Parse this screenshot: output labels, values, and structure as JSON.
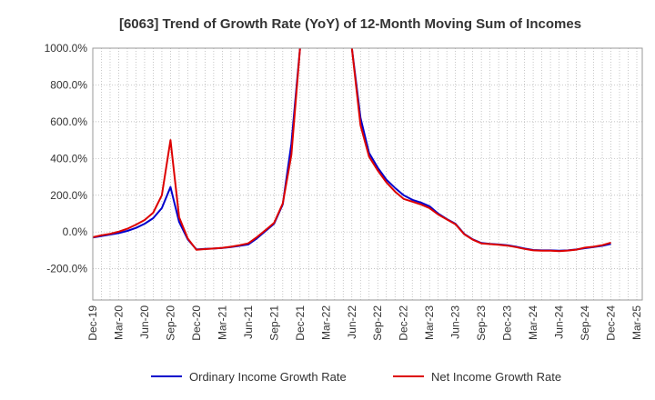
{
  "chart_data": {
    "type": "line",
    "title": "[6063]  Trend of Growth Rate (YoY) of 12-Month Moving Sum of Incomes",
    "xlabel": "",
    "ylabel": "",
    "ylim": [
      -370,
      1000
    ],
    "y_ticks": [
      1000,
      800,
      600,
      400,
      200,
      0,
      -200
    ],
    "y_tick_labels": [
      "1000.0%",
      "800.0%",
      "600.0%",
      "400.0%",
      "200.0%",
      "0.0%",
      "-200.0%"
    ],
    "x_tick_labels": [
      "Dec-19",
      "Mar-20",
      "Jun-20",
      "Sep-20",
      "Dec-20",
      "Mar-21",
      "Jun-21",
      "Sep-21",
      "Dec-21",
      "Mar-22",
      "Jun-22",
      "Sep-22",
      "Dec-22",
      "Mar-23",
      "Jun-23",
      "Sep-23",
      "Dec-23",
      "Mar-24",
      "Jun-24",
      "Sep-24",
      "Dec-24",
      "Mar-25"
    ],
    "grid": true,
    "legend_position": "bottom",
    "series": [
      {
        "name": "Ordinary Income Growth Rate",
        "color": "#0000cc",
        "points": [
          [
            "2019-12",
            -30
          ],
          [
            "2020-01",
            -22
          ],
          [
            "2020-02",
            -14
          ],
          [
            "2020-03",
            -6
          ],
          [
            "2020-04",
            6
          ],
          [
            "2020-05",
            22
          ],
          [
            "2020-06",
            45
          ],
          [
            "2020-07",
            75
          ],
          [
            "2020-08",
            130
          ],
          [
            "2020-09",
            245
          ],
          [
            "2020-10",
            55
          ],
          [
            "2020-11",
            -40
          ],
          [
            "2020-12",
            -95
          ],
          [
            "2021-01",
            -92
          ],
          [
            "2021-02",
            -90
          ],
          [
            "2021-03",
            -87
          ],
          [
            "2021-04",
            -82
          ],
          [
            "2021-05",
            -75
          ],
          [
            "2021-06",
            -68
          ],
          [
            "2021-07",
            -35
          ],
          [
            "2021-08",
            5
          ],
          [
            "2021-09",
            45
          ],
          [
            "2021-10",
            150
          ],
          [
            "2021-11",
            480
          ],
          [
            "2021-12",
            1000
          ],
          [
            "2022-06",
            1000
          ],
          [
            "2022-07",
            620
          ],
          [
            "2022-08",
            430
          ],
          [
            "2022-09",
            350
          ],
          [
            "2022-10",
            285
          ],
          [
            "2022-11",
            240
          ],
          [
            "2022-12",
            200
          ],
          [
            "2023-01",
            175
          ],
          [
            "2023-02",
            160
          ],
          [
            "2023-03",
            140
          ],
          [
            "2023-04",
            100
          ],
          [
            "2023-05",
            70
          ],
          [
            "2023-06",
            45
          ],
          [
            "2023-07",
            -10
          ],
          [
            "2023-08",
            -40
          ],
          [
            "2023-09",
            -60
          ],
          [
            "2023-10",
            -65
          ],
          [
            "2023-11",
            -68
          ],
          [
            "2023-12",
            -72
          ],
          [
            "2024-01",
            -80
          ],
          [
            "2024-02",
            -90
          ],
          [
            "2024-03",
            -98
          ],
          [
            "2024-04",
            -100
          ],
          [
            "2024-05",
            -100
          ],
          [
            "2024-06",
            -102
          ],
          [
            "2024-07",
            -100
          ],
          [
            "2024-08",
            -95
          ],
          [
            "2024-09",
            -88
          ],
          [
            "2024-10",
            -82
          ],
          [
            "2024-11",
            -75
          ],
          [
            "2024-12",
            -65
          ]
        ]
      },
      {
        "name": "Net Income Growth Rate",
        "color": "#dd0000",
        "points": [
          [
            "2019-12",
            -28
          ],
          [
            "2020-01",
            -18
          ],
          [
            "2020-02",
            -10
          ],
          [
            "2020-03",
            2
          ],
          [
            "2020-04",
            18
          ],
          [
            "2020-05",
            40
          ],
          [
            "2020-06",
            65
          ],
          [
            "2020-07",
            105
          ],
          [
            "2020-08",
            200
          ],
          [
            "2020-09",
            500
          ],
          [
            "2020-10",
            80
          ],
          [
            "2020-11",
            -35
          ],
          [
            "2020-12",
            -97
          ],
          [
            "2021-01",
            -93
          ],
          [
            "2021-02",
            -90
          ],
          [
            "2021-03",
            -86
          ],
          [
            "2021-04",
            -80
          ],
          [
            "2021-05",
            -72
          ],
          [
            "2021-06",
            -62
          ],
          [
            "2021-07",
            -28
          ],
          [
            "2021-08",
            10
          ],
          [
            "2021-09",
            50
          ],
          [
            "2021-10",
            155
          ],
          [
            "2021-11",
            420
          ],
          [
            "2021-12",
            1000
          ],
          [
            "2022-06",
            1000
          ],
          [
            "2022-07",
            580
          ],
          [
            "2022-08",
            410
          ],
          [
            "2022-09",
            335
          ],
          [
            "2022-10",
            270
          ],
          [
            "2022-11",
            220
          ],
          [
            "2022-12",
            180
          ],
          [
            "2023-01",
            165
          ],
          [
            "2023-02",
            150
          ],
          [
            "2023-03",
            130
          ],
          [
            "2023-04",
            95
          ],
          [
            "2023-05",
            68
          ],
          [
            "2023-06",
            42
          ],
          [
            "2023-07",
            -12
          ],
          [
            "2023-08",
            -42
          ],
          [
            "2023-09",
            -62
          ],
          [
            "2023-10",
            -66
          ],
          [
            "2023-11",
            -70
          ],
          [
            "2023-12",
            -74
          ],
          [
            "2024-01",
            -82
          ],
          [
            "2024-02",
            -92
          ],
          [
            "2024-03",
            -100
          ],
          [
            "2024-04",
            -102
          ],
          [
            "2024-05",
            -102
          ],
          [
            "2024-06",
            -104
          ],
          [
            "2024-07",
            -101
          ],
          [
            "2024-08",
            -96
          ],
          [
            "2024-09",
            -85
          ],
          [
            "2024-10",
            -80
          ],
          [
            "2024-11",
            -72
          ],
          [
            "2024-12",
            -58
          ]
        ]
      }
    ]
  }
}
